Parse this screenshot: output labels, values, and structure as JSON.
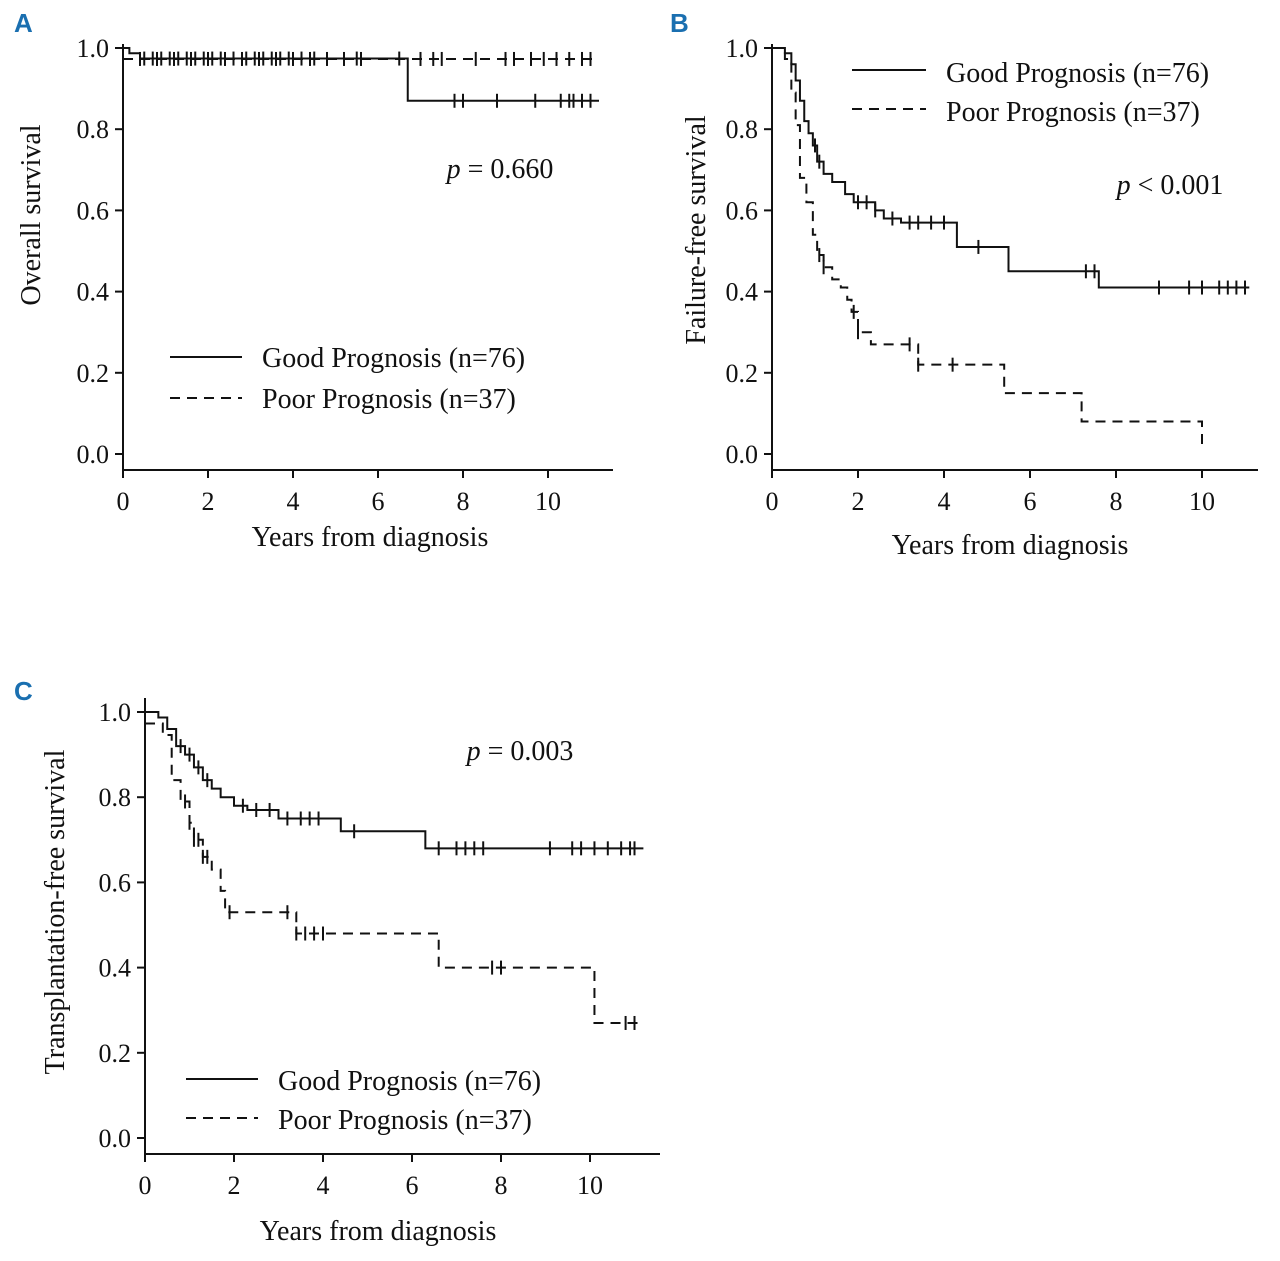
{
  "chart_data": [
    {
      "panel": "A",
      "type": "line",
      "title": "",
      "xlabel": "Years from diagnosis",
      "ylabel": "Overall survival",
      "xlim": [
        0,
        11.5
      ],
      "ylim": [
        0.0,
        1.0
      ],
      "xticks": [
        0,
        2,
        4,
        6,
        8,
        10
      ],
      "yticks": [
        "0.0",
        "0.2",
        "0.4",
        "0.6",
        "0.8",
        "1.0"
      ],
      "annotation": {
        "prefix": "p",
        "text": " = 0.660"
      },
      "legend_position": "bottom-left",
      "series": [
        {
          "name": "Good Prognosis (n=76)",
          "style": "solid",
          "steps": [
            [
              0,
              1.0
            ],
            [
              0.15,
              0.987
            ],
            [
              0.4,
              0.974
            ],
            [
              6.7,
              0.87
            ],
            [
              11.2,
              0.87
            ]
          ],
          "censors": [
            0.5,
            0.7,
            0.9,
            1.1,
            1.3,
            1.5,
            1.7,
            1.9,
            2.1,
            2.3,
            2.6,
            2.9,
            3.1,
            3.3,
            3.5,
            3.7,
            3.9,
            4.2,
            4.5,
            5.5,
            6.5,
            7.8,
            8.0,
            8.8,
            9.7,
            10.3,
            10.5,
            10.6,
            10.8,
            11.0
          ]
        },
        {
          "name": "Poor Prognosis (n=37)",
          "style": "dashed",
          "steps": [
            [
              0,
              0.973
            ],
            [
              11.2,
              0.973
            ]
          ],
          "censors": [
            0.4,
            0.8,
            1.2,
            1.6,
            2.0,
            2.4,
            2.8,
            3.2,
            3.6,
            4.0,
            4.4,
            4.8,
            5.2,
            5.6,
            7.0,
            7.3,
            7.5,
            8.3,
            9.0,
            9.2,
            9.6,
            9.9,
            10.2,
            10.5,
            10.8,
            11.0
          ]
        }
      ]
    },
    {
      "panel": "B",
      "type": "line",
      "title": "",
      "xlabel": "Years from diagnosis",
      "ylabel": "Failure-free survival",
      "xlim": [
        0,
        11.3
      ],
      "ylim": [
        0.0,
        1.0
      ],
      "xticks": [
        0,
        2,
        4,
        6,
        8,
        10
      ],
      "yticks": [
        "0.0",
        "0.2",
        "0.4",
        "0.6",
        "0.8",
        "1.0"
      ],
      "annotation": {
        "prefix": "p",
        "text": " < 0.001"
      },
      "legend_position": "top-right",
      "series": [
        {
          "name": "Good Prognosis (n=76)",
          "style": "solid",
          "steps": [
            [
              0,
              1.0
            ],
            [
              0.3,
              0.987
            ],
            [
              0.45,
              0.96
            ],
            [
              0.55,
              0.92
            ],
            [
              0.65,
              0.87
            ],
            [
              0.75,
              0.82
            ],
            [
              0.85,
              0.79
            ],
            [
              0.95,
              0.76
            ],
            [
              1.05,
              0.72
            ],
            [
              1.2,
              0.69
            ],
            [
              1.4,
              0.67
            ],
            [
              1.7,
              0.64
            ],
            [
              1.9,
              0.62
            ],
            [
              2.4,
              0.6
            ],
            [
              2.6,
              0.58
            ],
            [
              3.0,
              0.57
            ],
            [
              4.3,
              0.51
            ],
            [
              5.5,
              0.45
            ],
            [
              7.6,
              0.41
            ],
            [
              11.1,
              0.41
            ]
          ],
          "censors": [
            1.0,
            1.1,
            2.0,
            2.2,
            2.4,
            2.8,
            3.2,
            3.4,
            3.7,
            4.0,
            4.8,
            7.3,
            7.5,
            9.0,
            9.7,
            10.0,
            10.4,
            10.6,
            10.8,
            11.0
          ]
        },
        {
          "name": "Poor Prognosis (n=37)",
          "style": "dashed",
          "steps": [
            [
              0,
              1.0
            ],
            [
              0.3,
              0.973
            ],
            [
              0.45,
              0.89
            ],
            [
              0.55,
              0.81
            ],
            [
              0.65,
              0.68
            ],
            [
              0.8,
              0.62
            ],
            [
              0.95,
              0.54
            ],
            [
              1.05,
              0.49
            ],
            [
              1.2,
              0.46
            ],
            [
              1.4,
              0.43
            ],
            [
              1.6,
              0.41
            ],
            [
              1.75,
              0.38
            ],
            [
              1.85,
              0.35
            ],
            [
              2.0,
              0.3
            ],
            [
              2.3,
              0.27
            ],
            [
              3.4,
              0.22
            ],
            [
              5.4,
              0.15
            ],
            [
              7.2,
              0.08
            ],
            [
              10.0,
              0.02
            ]
          ],
          "censors": [
            1.1,
            1.2,
            1.9,
            2.0,
            3.2,
            3.4,
            4.2
          ]
        }
      ]
    },
    {
      "panel": "C",
      "type": "line",
      "title": "",
      "xlabel": "Years from diagnosis",
      "ylabel": "Transplantation-free survival",
      "xlim": [
        0,
        11.5
      ],
      "ylim": [
        0.0,
        1.0
      ],
      "xticks": [
        0,
        2,
        4,
        6,
        8,
        10
      ],
      "yticks": [
        "0.0",
        "0.2",
        "0.4",
        "0.6",
        "0.8",
        "1.0"
      ],
      "annotation": {
        "prefix": "p",
        "text": " = 0.003"
      },
      "legend_position": "bottom-left",
      "series": [
        {
          "name": "Good Prognosis (n=76)",
          "style": "solid",
          "steps": [
            [
              0,
              1.0
            ],
            [
              0.3,
              0.987
            ],
            [
              0.5,
              0.96
            ],
            [
              0.7,
              0.92
            ],
            [
              0.9,
              0.9
            ],
            [
              1.1,
              0.87
            ],
            [
              1.3,
              0.84
            ],
            [
              1.5,
              0.82
            ],
            [
              1.7,
              0.8
            ],
            [
              2.0,
              0.78
            ],
            [
              2.3,
              0.77
            ],
            [
              3.0,
              0.75
            ],
            [
              4.4,
              0.72
            ],
            [
              6.3,
              0.68
            ],
            [
              11.2,
              0.68
            ]
          ],
          "censors": [
            0.8,
            1.0,
            1.2,
            1.4,
            2.2,
            2.5,
            2.8,
            3.2,
            3.5,
            3.7,
            3.9,
            4.7,
            6.6,
            7.0,
            7.2,
            7.4,
            7.6,
            9.1,
            9.6,
            9.8,
            10.1,
            10.4,
            10.7,
            10.9,
            11.0
          ]
        },
        {
          "name": "Poor Prognosis (n=37)",
          "style": "dashed",
          "steps": [
            [
              0,
              0.973
            ],
            [
              0.4,
              0.946
            ],
            [
              0.6,
              0.84
            ],
            [
              0.8,
              0.79
            ],
            [
              1.0,
              0.74
            ],
            [
              1.1,
              0.7
            ],
            [
              1.3,
              0.66
            ],
            [
              1.5,
              0.63
            ],
            [
              1.7,
              0.58
            ],
            [
              1.8,
              0.53
            ],
            [
              3.4,
              0.48
            ],
            [
              6.6,
              0.4
            ],
            [
              10.1,
              0.27
            ],
            [
              11.2,
              0.27
            ]
          ],
          "censors": [
            0.9,
            1.0,
            1.1,
            1.2,
            1.3,
            1.4,
            1.9,
            3.2,
            3.4,
            3.6,
            3.8,
            4.0,
            7.8,
            8.0,
            10.8,
            11.0
          ]
        }
      ]
    }
  ]
}
